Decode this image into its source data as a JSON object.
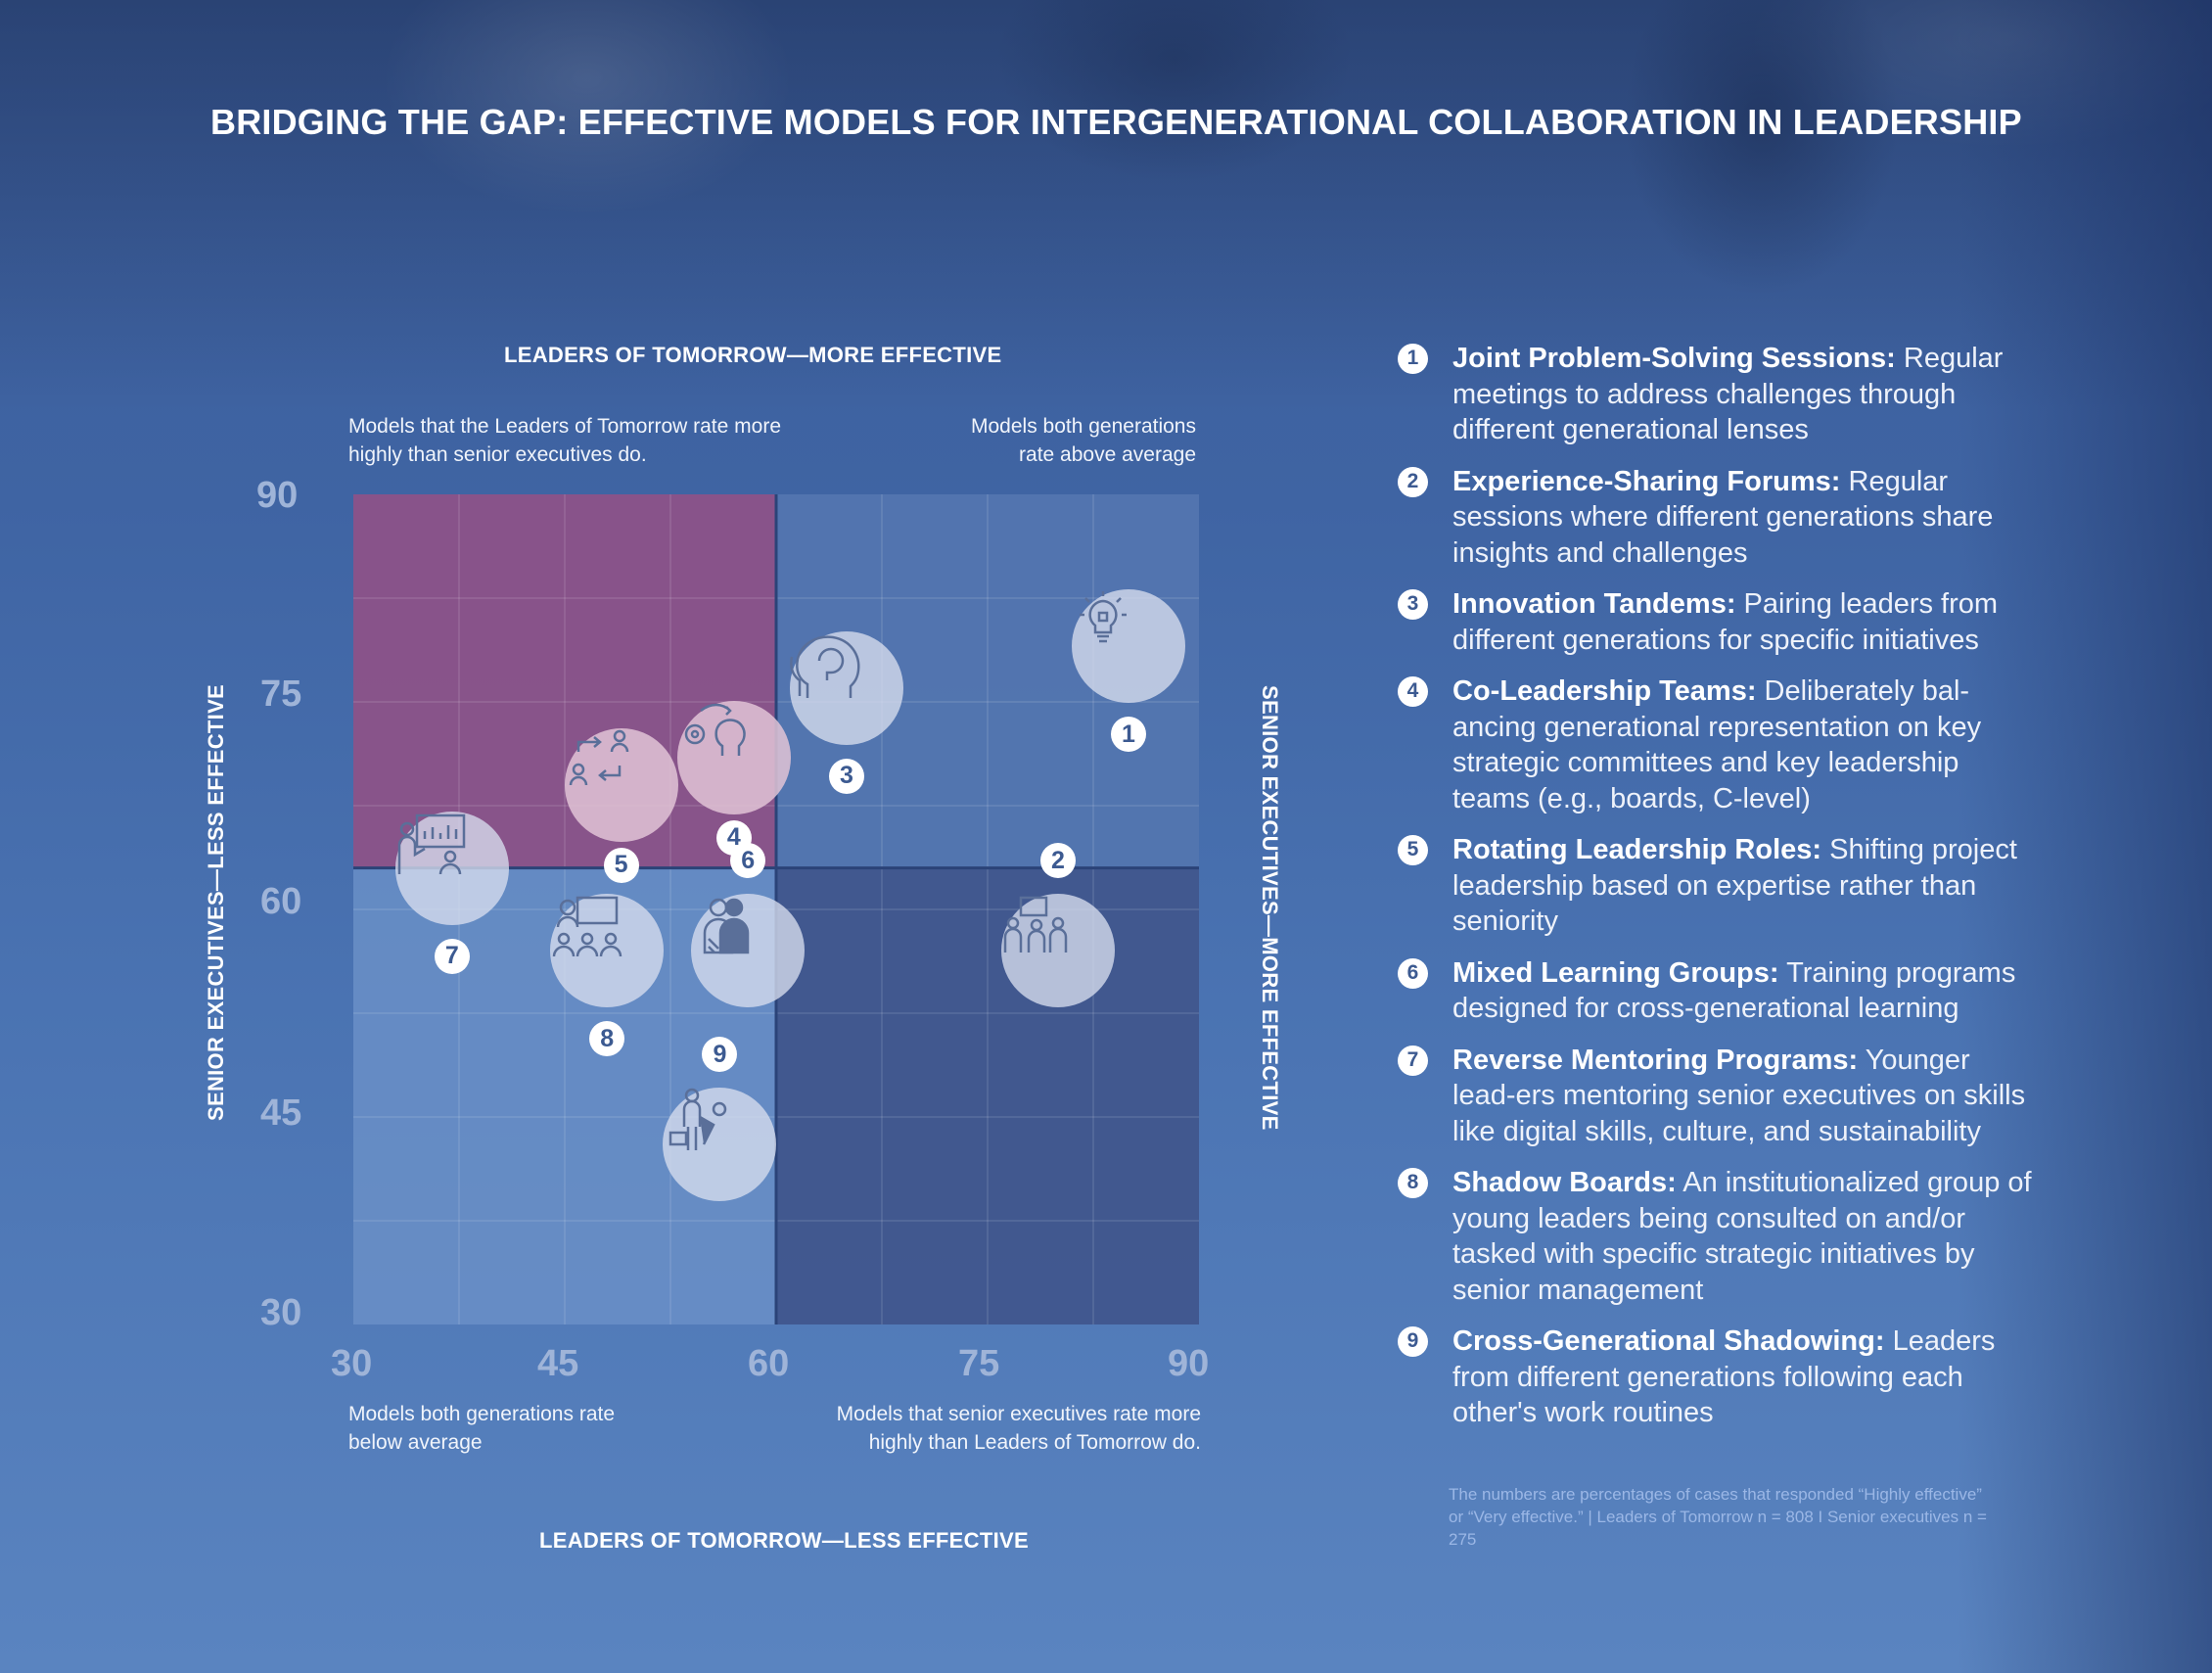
{
  "title": "BRIDGING THE GAP: EFFECTIVE MODELS FOR INTERGENERATIONAL COLLABORATION IN LEADERSHIP",
  "colors": {
    "pink_quadrant": "#8e4a80",
    "dark_quadrant": "#3d5289",
    "light_quadrant": "#6a8fc7",
    "right_top_quadrant": "#5072ad",
    "badge_text": "#3c5a91"
  },
  "corner_notes": {
    "top_left": "Models that the Leaders of Tomorrow rate more highly than senior executives do.",
    "top_right": "Models both generations rate above average",
    "bottom_left": "Models both generations rate below average",
    "bottom_right": "Models that senior executives rate more highly than Leaders of Tomorrow do."
  },
  "chart_data": {
    "type": "scatter",
    "title": "BRIDGING THE GAP: EFFECTIVE MODELS FOR INTERGENERATIONAL COLLABORATION IN LEADERSHIP",
    "axis_labels": {
      "top": "LEADERS OF TOMORROW—MORE EFFECTIVE",
      "bottom": "LEADERS OF TOMORROW—LESS EFFECTIVE",
      "left": "SENIOR EXECUTIVES—LESS EFFECTIVE",
      "right": "SENIOR EXECUTIVES—MORE EFFECTIVE"
    },
    "xlim": [
      30,
      90
    ],
    "ylim": [
      30,
      90
    ],
    "x_ticks": [
      "30",
      "45",
      "60",
      "75",
      "90"
    ],
    "y_ticks": [
      "90",
      "75",
      "60",
      "45",
      "30"
    ],
    "grid": true,
    "divider": {
      "x": 60,
      "y": 63
    },
    "points": [
      {
        "id": "1",
        "x": 85,
        "y": 79,
        "icon": "lightbulb-puzzle-icon"
      },
      {
        "id": "2",
        "x": 80,
        "y": 57,
        "icon": "meeting-presentation-icon"
      },
      {
        "id": "3",
        "x": 65,
        "y": 76,
        "icon": "head-idea-icon"
      },
      {
        "id": "4",
        "x": 57,
        "y": 71,
        "icon": "gear-exchange-heads-icon"
      },
      {
        "id": "5",
        "x": 49,
        "y": 69,
        "icon": "rotating-people-icon"
      },
      {
        "id": "6",
        "x": 58,
        "y": 57,
        "icon": "group-learning-icon"
      },
      {
        "id": "7",
        "x": 37,
        "y": 63,
        "icon": "mentoring-presentation-icon"
      },
      {
        "id": "8",
        "x": 48,
        "y": 57,
        "icon": "board-meeting-icon"
      },
      {
        "id": "9",
        "x": 56,
        "y": 43,
        "icon": "shadowing-person-icon"
      }
    ]
  },
  "legend": [
    {
      "num": "1",
      "name": "Joint Problem-Solving Sessions:",
      "desc": "Regular meetings to address challenges through different generational lenses"
    },
    {
      "num": "2",
      "name": "Experience-Sharing Forums:",
      "desc": "Regular sessions where different generations share insights and challenges"
    },
    {
      "num": "3",
      "name": "Innovation Tandems:",
      "desc": "Pairing leaders from different generations for specific initiatives"
    },
    {
      "num": "4",
      "name": "Co-Leadership Teams:",
      "desc": "Deliberately bal-ancing generational representation on key strategic committees and key leadership teams (e.g., boards, C-level)"
    },
    {
      "num": "5",
      "name": "Rotating Leadership Roles:",
      "desc": "Shifting project leadership based on expertise rather than seniority"
    },
    {
      "num": "6",
      "name": "Mixed Learning Groups:",
      "desc": "Training programs designed for cross-generational learning"
    },
    {
      "num": "7",
      "name": "Reverse Mentoring Programs:",
      "desc": "Younger lead-ers mentoring senior executives on skills like digital skills, culture, and sustainability"
    },
    {
      "num": "8",
      "name": "Shadow Boards:",
      "desc": "An institutionalized group of young leaders being consulted on and/or tasked with specific strategic initiatives by senior management"
    },
    {
      "num": "9",
      "name": "Cross-Generational Shadowing:",
      "desc": "Leaders from different generations following each other's work routines"
    }
  ],
  "footnote": "The numbers are percentages of cases that responded “Highly effective” or “Very effective.” | Leaders of Tomorrow n = 808 I Senior executives n = 275"
}
